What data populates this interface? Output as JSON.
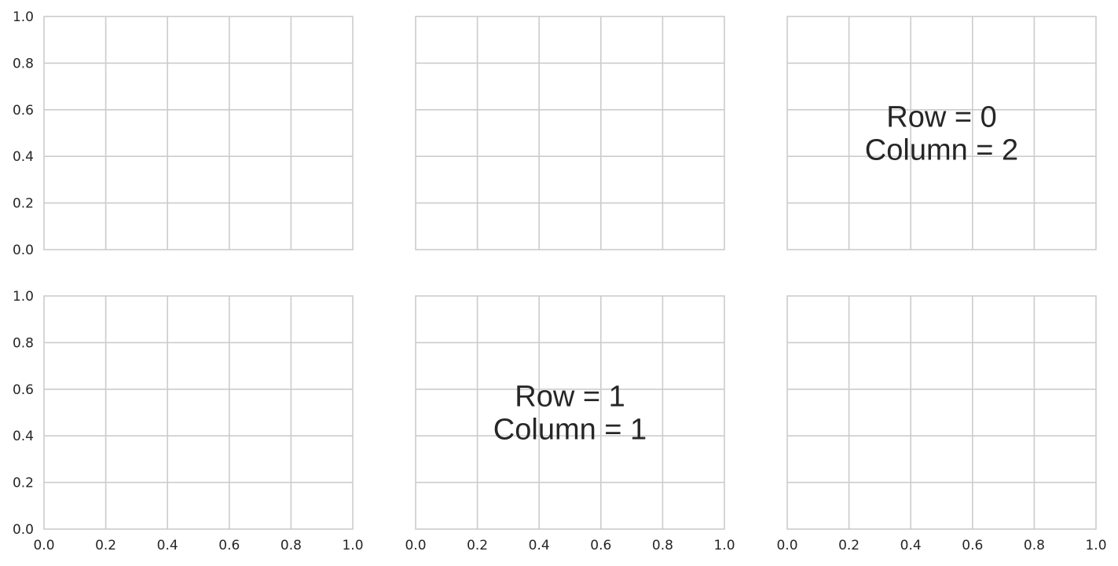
{
  "chart_data": {
    "type": "scatter",
    "layout": {
      "rows": 2,
      "cols": 3,
      "sharex": true,
      "sharey": true
    },
    "xlim": [
      0,
      1
    ],
    "ylim": [
      0,
      1
    ],
    "x_ticks": [
      "0.0",
      "0.2",
      "0.4",
      "0.6",
      "0.8",
      "1.0"
    ],
    "y_ticks": [
      "0.0",
      "0.2",
      "0.4",
      "0.6",
      "0.8",
      "1.0"
    ],
    "grid": true,
    "panels": [
      {
        "row": 0,
        "col": 0,
        "annotation": []
      },
      {
        "row": 0,
        "col": 1,
        "annotation": []
      },
      {
        "row": 0,
        "col": 2,
        "annotation": [
          "Row = 0",
          "Column = 2"
        ]
      },
      {
        "row": 1,
        "col": 0,
        "annotation": []
      },
      {
        "row": 1,
        "col": 1,
        "annotation": [
          "Row = 1",
          "Column = 1"
        ]
      },
      {
        "row": 1,
        "col": 2,
        "annotation": []
      }
    ]
  }
}
